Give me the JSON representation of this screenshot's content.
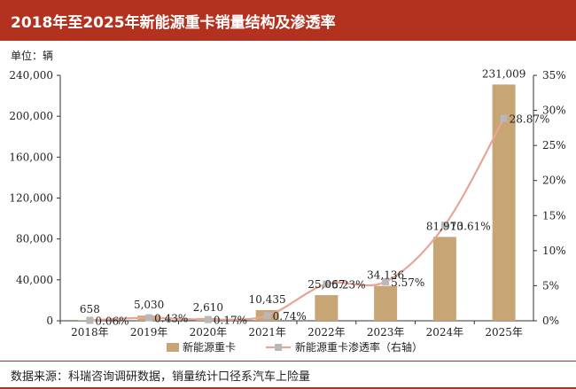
{
  "title": "2018年至2025年新能源重卡销量结构及渗透率",
  "unit_label": "单位：辆",
  "source": "数据来源：科瑞咨询调研数据，销量统计口径系汽车上险量",
  "colors": {
    "title_bg": "#b3311f",
    "bar": "#c8a574",
    "line": "#e8a595",
    "marker": "#b8b8b8"
  },
  "chart_data": {
    "type": "bar",
    "categories": [
      "2018年",
      "2019年",
      "2020年",
      "2021年",
      "2022年",
      "2023年",
      "2024年",
      "2025年"
    ],
    "series": [
      {
        "name": "新能源重卡",
        "type": "bar",
        "axis": "left",
        "values": [
          658,
          5030,
          2610,
          10435,
          25067,
          34136,
          81970,
          231009
        ],
        "labels": [
          "658",
          "5,030",
          "2,610",
          "10,435",
          "25,067",
          "34,136",
          "81,970",
          "231,009"
        ]
      },
      {
        "name": "新能源重卡渗透率（右轴）",
        "type": "line",
        "axis": "right",
        "values": [
          0.06,
          0.43,
          0.17,
          0.74,
          5.23,
          5.57,
          13.61,
          28.87
        ],
        "labels": [
          "0.06%",
          "0.43%",
          "0.17%",
          "0.74%",
          "5.23%",
          "5.57%",
          "13.61%",
          "28.87%"
        ]
      }
    ],
    "y_left": {
      "min": 0,
      "max": 240000,
      "ticks": [
        "0",
        "40,000",
        "80,000",
        "120,000",
        "160,000",
        "200,000",
        "240,000"
      ]
    },
    "y_right": {
      "min": 0,
      "max": 35,
      "ticks": [
        "0%",
        "5%",
        "10%",
        "15%",
        "20%",
        "25%",
        "30%",
        "35%"
      ]
    },
    "grid": false,
    "legend_position": "bottom"
  }
}
